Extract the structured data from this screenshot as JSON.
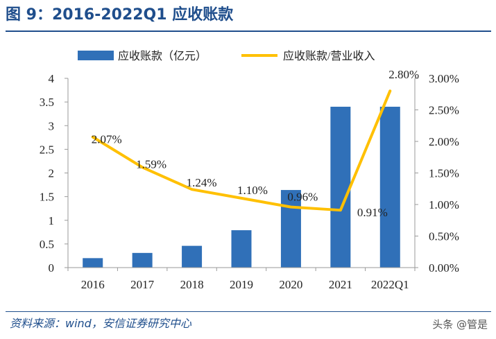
{
  "header": {
    "title": "图 9：2016-2022Q1 应收账款"
  },
  "footer": {
    "source": "资料来源：wind，安信证券研究中心",
    "watermark": "头条 @管是"
  },
  "colors": {
    "bar": "#3070b8",
    "line": "#ffc000",
    "axis": "#9a9a9a",
    "text": "#222222",
    "brand": "#1f4e8c"
  },
  "chart_data": {
    "type": "bar",
    "categories": [
      "2016",
      "2017",
      "2018",
      "2019",
      "2020",
      "2021",
      "2022Q1"
    ],
    "series": [
      {
        "name": "应收账款（亿元）",
        "type": "bar",
        "axis": "left",
        "values": [
          0.2,
          0.31,
          0.46,
          0.79,
          1.64,
          3.4,
          3.4
        ]
      },
      {
        "name": "应收账款/营业收入",
        "type": "line",
        "axis": "right",
        "values": [
          2.07,
          1.59,
          1.24,
          1.1,
          0.96,
          0.91,
          2.8
        ],
        "unit": "%",
        "labels": [
          "2.07%",
          "1.59%",
          "1.24%",
          "1.10%",
          "0.96%",
          "0.91%",
          "2.80%"
        ]
      }
    ],
    "left_axis": {
      "ylim": [
        0,
        4
      ],
      "ticks": [
        0,
        0.5,
        1,
        1.5,
        2,
        2.5,
        3,
        3.5,
        4
      ],
      "tick_labels": [
        "0",
        "0.5",
        "1",
        "1.5",
        "2",
        "2.5",
        "3",
        "3.5",
        "4"
      ]
    },
    "right_axis": {
      "ylim": [
        0,
        3
      ],
      "ticks": [
        0,
        0.5,
        1,
        1.5,
        2,
        2.5,
        3
      ],
      "tick_labels": [
        "0.00%",
        "0.50%",
        "1.00%",
        "1.50%",
        "2.00%",
        "2.50%",
        "3.00%"
      ]
    },
    "legend": {
      "position": "top"
    },
    "grid": false
  }
}
